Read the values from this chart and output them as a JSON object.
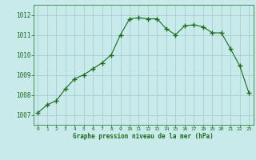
{
  "hours": [
    0,
    1,
    2,
    3,
    4,
    5,
    6,
    7,
    8,
    9,
    10,
    11,
    12,
    13,
    14,
    15,
    16,
    17,
    18,
    19,
    20,
    21,
    22,
    23
  ],
  "pressure": [
    1007.1,
    1007.5,
    1007.7,
    1008.3,
    1008.8,
    1009.0,
    1009.3,
    1009.6,
    1010.0,
    1011.0,
    1011.8,
    1011.85,
    1011.8,
    1011.8,
    1011.3,
    1011.0,
    1011.45,
    1011.5,
    1011.4,
    1011.1,
    1011.1,
    1010.3,
    1009.45,
    1008.1
  ],
  "line_color": "#1a6b1a",
  "marker_color": "#1a6b1a",
  "bg_color": "#c8eaea",
  "grid_color": "#a8d0d0",
  "xlabel": "Graphe pression niveau de la mer (hPa)",
  "xlabel_color": "#1a6b1a",
  "tick_color": "#1a6b1a",
  "ylim": [
    1006.5,
    1012.5
  ],
  "yticks": [
    1007,
    1008,
    1009,
    1010,
    1011,
    1012
  ],
  "xticks": [
    0,
    1,
    2,
    3,
    4,
    5,
    6,
    7,
    8,
    9,
    10,
    11,
    12,
    13,
    14,
    15,
    16,
    17,
    18,
    19,
    20,
    21,
    22,
    23
  ],
  "figsize": [
    3.2,
    2.0
  ],
  "dpi": 100
}
